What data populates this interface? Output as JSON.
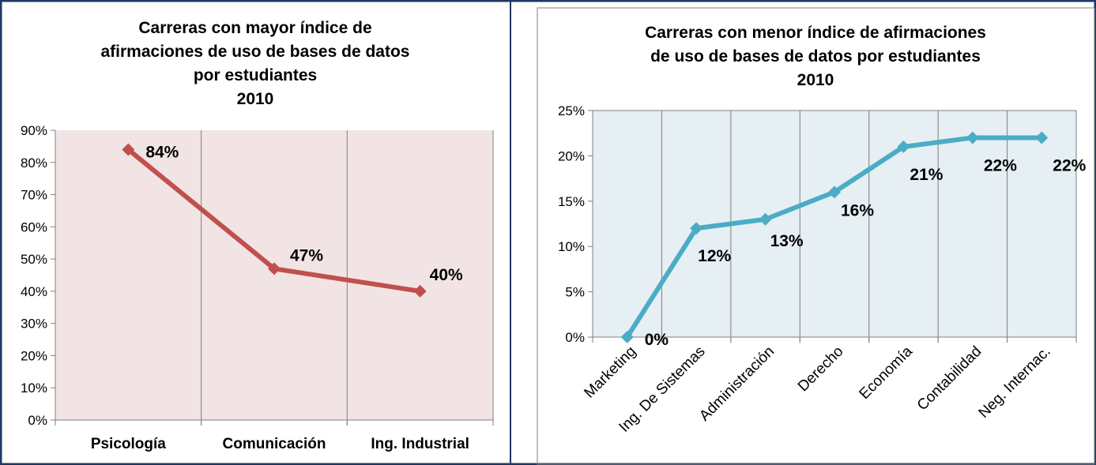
{
  "chart_data": [
    {
      "type": "line",
      "title_lines": [
        "Carreras con mayor índice de",
        "afirmaciones de uso de bases de datos",
        "por estudiantes",
        "2010"
      ],
      "categories": [
        "Psicología",
        "Comunicación",
        "Ing. Industrial"
      ],
      "values": [
        84,
        47,
        40
      ],
      "data_labels": [
        "84%",
        "47%",
        "40%"
      ],
      "ylim": [
        0,
        90
      ],
      "yticks": [
        0,
        10,
        20,
        30,
        40,
        50,
        60,
        70,
        80,
        90
      ],
      "ytick_labels": [
        "0%",
        "10%",
        "20%",
        "30%",
        "40%",
        "50%",
        "60%",
        "70%",
        "80%",
        "90%"
      ],
      "xlabel": "",
      "ylabel": "",
      "grid": "vertical",
      "legend": "none",
      "colors": {
        "line": "#c0504d",
        "plot_bg": "#f2e4e4",
        "grid": "#7f7f7f"
      }
    },
    {
      "type": "line",
      "title_lines": [
        "Carreras con menor índice de afirmaciones",
        "de uso de bases de datos por estudiantes",
        "2010"
      ],
      "categories": [
        "Marketing",
        "Ing. De Sistemas",
        "Administración",
        "Derecho",
        "Economía",
        "Contabilidad",
        "Neg. Internac."
      ],
      "values": [
        0,
        12,
        13,
        16,
        21,
        22,
        22
      ],
      "data_labels": [
        "0%",
        "12%",
        "13%",
        "16%",
        "21%",
        "22%",
        "22%"
      ],
      "ylim": [
        0,
        25
      ],
      "yticks": [
        0,
        5,
        10,
        15,
        20,
        25
      ],
      "ytick_labels": [
        "0%",
        "5%",
        "10%",
        "15%",
        "20%",
        "25%"
      ],
      "xlabel": "",
      "ylabel": "",
      "grid": "vertical",
      "legend": "none",
      "colors": {
        "line": "#4bacc6",
        "plot_bg": "#e6eff3",
        "grid": "#7f7f7f"
      }
    }
  ]
}
